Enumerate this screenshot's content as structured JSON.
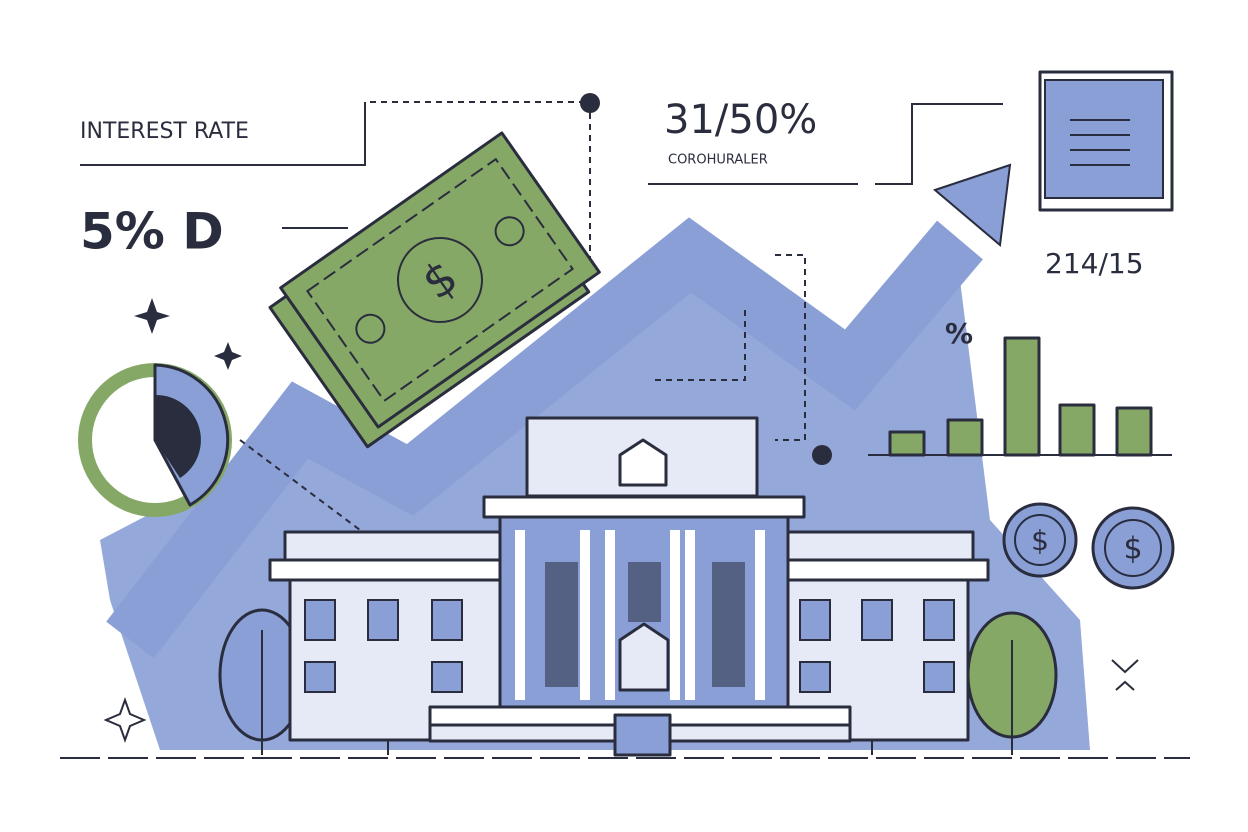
{
  "labels": {
    "interest_rate": "INTEREST RATE",
    "rate_value": "5% D",
    "top_figure": "31/50%",
    "top_caption": "COROHURALER",
    "right_figure": "214/15",
    "percent_sign": "%"
  },
  "symbols": {
    "bill": "$",
    "coins": [
      "$",
      "$"
    ]
  }
}
